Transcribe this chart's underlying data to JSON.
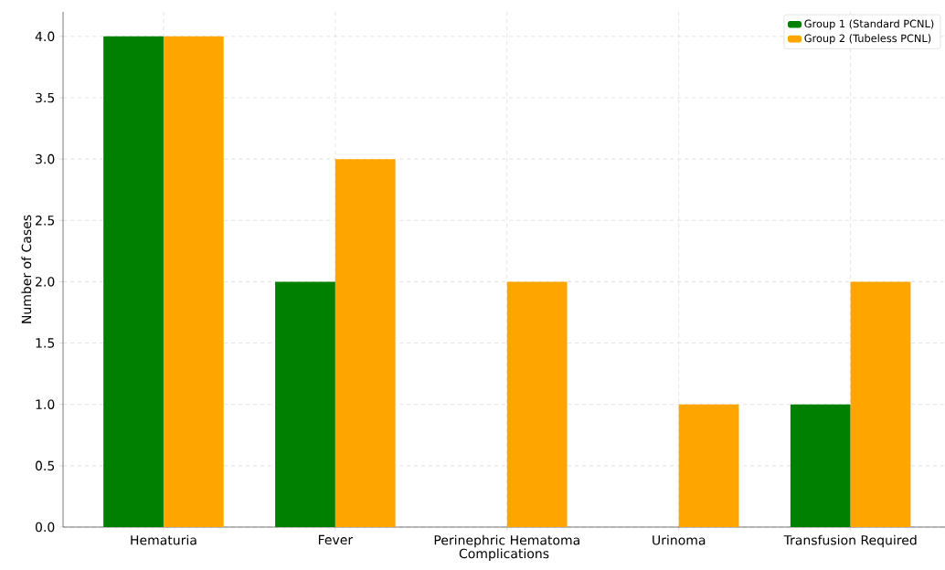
{
  "chart_data": {
    "type": "bar",
    "xlabel": "Complications",
    "ylabel": "Number of Cases",
    "categories": [
      "Hematuria",
      "Fever",
      "Perinephric Hematoma",
      "Urinoma",
      "Transfusion Required"
    ],
    "series": [
      {
        "name": "Group 1 (Standard PCNL)",
        "color": "#008000",
        "values": [
          4,
          2,
          0,
          0,
          1
        ]
      },
      {
        "name": "Group 2 (Tubeless PCNL)",
        "color": "#ffa500",
        "values": [
          4,
          3,
          2,
          1,
          2
        ]
      }
    ],
    "ylim": [
      0,
      4.2
    ],
    "yticks": [
      {
        "value": 0,
        "label": "0.0"
      },
      {
        "value": 0.5,
        "label": "0.5"
      },
      {
        "value": 1,
        "label": "1.0"
      },
      {
        "value": 1.5,
        "label": "1.5"
      },
      {
        "value": 2,
        "label": "2.0"
      },
      {
        "value": 2.5,
        "label": "2.5"
      },
      {
        "value": 3,
        "label": "3.0"
      },
      {
        "value": 3.5,
        "label": "3.5"
      },
      {
        "value": 4,
        "label": "4.0"
      }
    ],
    "grid": true,
    "legend": "top right"
  }
}
